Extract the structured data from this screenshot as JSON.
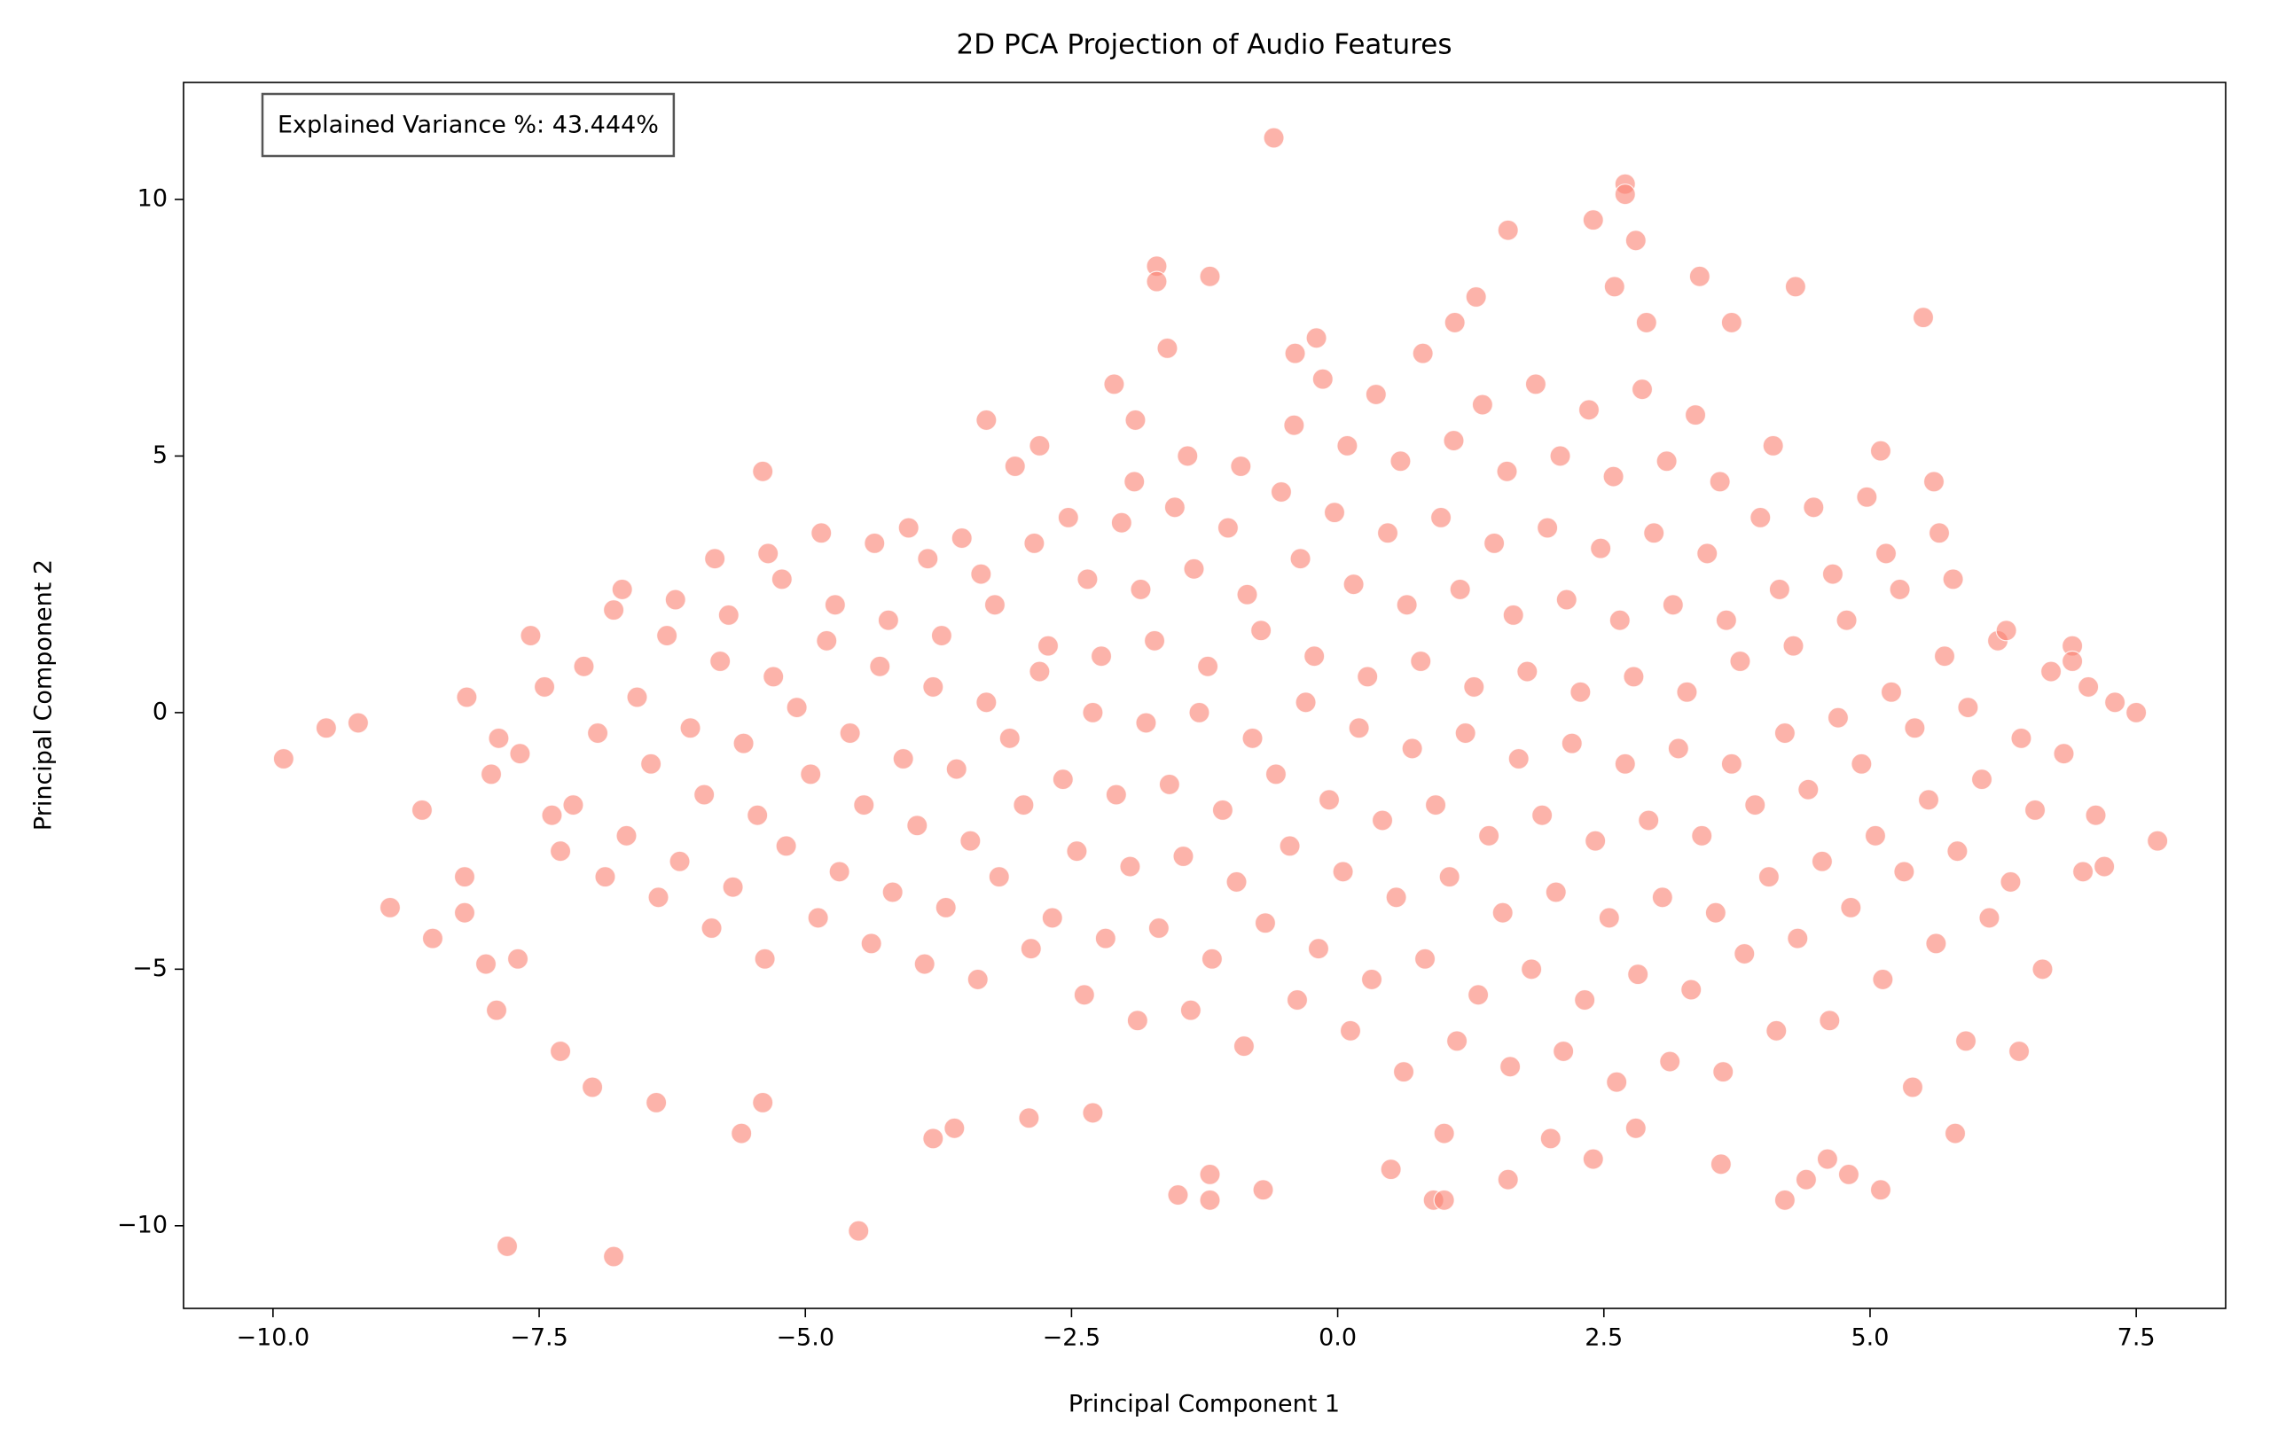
{
  "chart_data": {
    "type": "scatter",
    "title": "2D PCA Projection of Audio Features",
    "x_label": "Principal Component 1",
    "y_label": "Principal Component 2",
    "annotation": "Explained Variance %: 43.444%",
    "color": "#fa8072",
    "xlim": [
      -10.84,
      8.34
    ],
    "ylim": [
      -11.61,
      12.28
    ],
    "xticks": [
      {
        "value": -10,
        "label": "−10.0"
      },
      {
        "value": -7.5,
        "label": "−7.5"
      },
      {
        "value": -5,
        "label": "−5.0"
      },
      {
        "value": -2.5,
        "label": "−2.5"
      },
      {
        "value": 0,
        "label": "0.0"
      },
      {
        "value": 2.5,
        "label": "2.5"
      },
      {
        "value": 5,
        "label": "5.0"
      },
      {
        "value": 7.5,
        "label": "7.5"
      }
    ],
    "yticks": [
      {
        "value": -10,
        "label": "−10"
      },
      {
        "value": -5,
        "label": "−5"
      },
      0,
      5,
      10
    ],
    "x": [
      -9.9,
      -9.5,
      -9.2,
      -8.9,
      -8.6,
      -8.5,
      -8.2,
      -8.2,
      -8.0,
      -7.9,
      -7.8,
      -7.7,
      -6.8,
      -4.5,
      -7.3,
      -7.0,
      -6.4,
      -5.6,
      -5.4,
      -3.8,
      -3.6,
      -2.3,
      -2.9,
      -1.5,
      -1.2,
      -1.2,
      -0.7,
      0.5,
      0.9,
      1.0,
      1.6,
      1.0,
      2.0,
      2.4,
      2.8,
      3.6,
      4.2,
      4.4,
      4.6,
      4.8,
      5.1,
      5.8,
      5.9,
      5.4,
      6.4,
      7.7,
      7.5,
      7.3,
      7.2,
      7.0,
      6.9,
      6.9,
      5.5,
      4.3,
      3.4,
      3.7,
      2.9,
      2.8,
      2.7,
      2.7,
      2.4,
      1.6,
      1.3,
      2.6,
      -0.6,
      -1.7,
      -1.7,
      -1.2,
      -1.6,
      -0.4,
      -0.2,
      1.1,
      0.8,
      -2.1,
      -3.3,
      -5.4,
      -1.9,
      -2.8,
      5.1,
      5.6,
      -7.88,
      -8.18,
      -7.95,
      -7.38,
      -7.68,
      -7.45,
      -7.58,
      -7.3,
      -6.88,
      -7.18,
      -6.95,
      -7.08,
      -6.8,
      -6.38,
      -6.68,
      -6.45,
      -6.58,
      -6.3,
      -6.72,
      -5.88,
      -6.18,
      -5.95,
      -6.08,
      -5.8,
      -6.22,
      -5.85,
      -5.38,
      -5.68,
      -5.45,
      -5.58,
      -5.3,
      -5.72,
      -5.35,
      -4.88,
      -5.18,
      -4.95,
      -5.08,
      -4.8,
      -5.22,
      -4.85,
      -4.38,
      -4.68,
      -4.45,
      -4.58,
      -4.3,
      -4.72,
      -4.35,
      -3.88,
      -4.18,
      -3.95,
      -4.08,
      -3.8,
      -4.22,
      -3.85,
      -4.03,
      -3.38,
      -3.68,
      -3.45,
      -3.58,
      -3.3,
      -3.72,
      -3.35,
      -3.53,
      -2.88,
      -3.18,
      -2.95,
      -3.08,
      -2.8,
      -3.22,
      -2.85,
      -3.03,
      -2.38,
      -2.68,
      -2.45,
      -2.58,
      -2.3,
      -2.72,
      -2.35,
      -2.53,
      -1.88,
      -2.18,
      -1.95,
      -2.08,
      -1.8,
      -2.22,
      -1.85,
      -2.03,
      -1.91,
      -1.38,
      -1.68,
      -1.45,
      -1.58,
      -1.3,
      -1.72,
      -1.35,
      -1.53,
      -1.41,
      -0.88,
      -1.18,
      -0.95,
      -1.08,
      -0.8,
      -1.22,
      -0.85,
      -1.03,
      -0.91,
      -0.38,
      -0.68,
      -0.45,
      -0.58,
      -0.3,
      -0.72,
      -0.35,
      -0.53,
      -0.41,
      0.12,
      -0.18,
      0.05,
      -0.08,
      0.2,
      -0.22,
      0.15,
      -0.03,
      0.09,
      -0.14,
      0.62,
      0.32,
      0.55,
      0.42,
      0.7,
      0.28,
      0.65,
      0.47,
      0.59,
      0.36,
      1.12,
      0.82,
      1.05,
      0.92,
      1.2,
      0.78,
      1.15,
      0.97,
      1.09,
      1.62,
      1.32,
      1.55,
      1.42,
      1.7,
      1.28,
      1.65,
      1.47,
      1.59,
      1.36,
      2.12,
      1.82,
      2.05,
      1.92,
      2.2,
      1.78,
      2.15,
      1.97,
      2.09,
      1.86,
      2.62,
      2.32,
      2.55,
      2.42,
      2.7,
      2.28,
      2.65,
      2.47,
      2.59,
      2.36,
      3.12,
      2.82,
      3.05,
      2.92,
      3.2,
      2.78,
      3.15,
      2.97,
      3.09,
      2.86,
      3.62,
      3.32,
      3.55,
      3.42,
      3.7,
      3.28,
      3.65,
      3.47,
      3.59,
      3.36,
      4.12,
      3.82,
      4.05,
      3.92,
      4.2,
      3.78,
      4.15,
      3.97,
      4.09,
      4.62,
      4.32,
      4.55,
      4.42,
      4.7,
      4.28,
      4.65,
      4.47,
      5.12,
      4.82,
      5.05,
      4.92,
      5.2,
      4.78,
      5.15,
      4.97,
      5.62,
      5.32,
      5.55,
      5.42,
      5.7,
      5.28,
      5.65,
      6.12,
      5.82,
      6.05,
      5.92,
      6.2,
      5.78,
      6.62,
      6.32,
      6.55,
      6.42,
      6.7,
      6.28,
      7.12,
      6.82,
      7.05
    ],
    "values": [
      -0.9,
      -0.3,
      -0.2,
      -3.8,
      -1.9,
      -4.4,
      -3.9,
      -3.2,
      -4.9,
      -5.8,
      -10.4,
      -4.8,
      -10.6,
      -10.1,
      -6.6,
      -7.3,
      -7.6,
      -8.2,
      -7.6,
      -8.3,
      -8.1,
      -7.8,
      -7.9,
      -9.4,
      -9.0,
      -9.5,
      -9.3,
      -8.9,
      -9.5,
      -9.5,
      -9.1,
      -8.2,
      -8.3,
      -8.7,
      -8.1,
      -8.8,
      -9.5,
      -9.1,
      -8.7,
      -9.0,
      -9.3,
      -8.2,
      -6.4,
      -7.3,
      -6.6,
      -2.5,
      0.0,
      0.2,
      -3.0,
      -3.1,
      1.3,
      1.0,
      7.7,
      8.3,
      8.5,
      7.6,
      7.6,
      9.2,
      10.3,
      10.1,
      9.6,
      9.4,
      8.1,
      8.3,
      11.2,
      8.7,
      8.4,
      8.5,
      7.1,
      7.0,
      7.3,
      7.6,
      7.0,
      6.4,
      5.7,
      4.7,
      5.7,
      5.2,
      5.1,
      4.5,
      -0.5,
      0.3,
      -1.2,
      -2.0,
      -0.8,
      0.5,
      1.5,
      -2.7,
      -3.2,
      -1.8,
      -0.4,
      0.9,
      2.0,
      -3.6,
      -2.4,
      -1.0,
      0.3,
      1.5,
      2.4,
      -4.2,
      -2.9,
      -1.6,
      -0.3,
      1.0,
      2.2,
      3.0,
      -4.8,
      -3.4,
      -2.0,
      -0.6,
      0.7,
      1.9,
      3.1,
      -4.0,
      -2.6,
      -1.2,
      0.1,
      1.4,
      2.6,
      3.5,
      -4.5,
      -3.1,
      -1.8,
      -0.4,
      0.9,
      2.1,
      3.3,
      -4.9,
      -3.5,
      -2.2,
      -0.9,
      0.5,
      1.8,
      3.0,
      3.6,
      -5.2,
      -3.8,
      -2.5,
      -1.1,
      0.2,
      1.5,
      2.7,
      3.4,
      -4.6,
      -3.2,
      -1.8,
      -0.5,
      0.8,
      2.1,
      3.3,
      4.8,
      -5.5,
      -4.0,
      -2.7,
      -1.3,
      0.0,
      1.3,
      2.6,
      3.8,
      -6.0,
      -4.4,
      -3.0,
      -1.6,
      -0.2,
      1.1,
      2.4,
      3.7,
      4.5,
      -5.8,
      -4.2,
      -2.8,
      -1.4,
      0.0,
      1.4,
      2.8,
      4.0,
      5.0,
      -6.5,
      -4.8,
      -3.3,
      -1.9,
      -0.5,
      0.9,
      2.3,
      3.6,
      4.8,
      -5.6,
      -4.1,
      -2.6,
      -1.2,
      0.2,
      1.6,
      3.0,
      4.3,
      5.6,
      -6.2,
      -4.6,
      -3.1,
      -1.7,
      -0.3,
      1.1,
      2.5,
      3.9,
      5.2,
      6.5,
      -7.0,
      -5.2,
      -3.6,
      -2.1,
      -0.7,
      0.7,
      2.1,
      3.5,
      4.9,
      6.2,
      -6.4,
      -4.8,
      -3.2,
      -1.8,
      -0.4,
      1.0,
      2.4,
      3.8,
      5.3,
      -6.9,
      -5.5,
      -3.9,
      -2.4,
      -0.9,
      0.5,
      1.9,
      3.3,
      4.7,
      6.0,
      -6.6,
      -5.0,
      -3.5,
      -2.0,
      -0.6,
      0.8,
      2.2,
      3.6,
      5.0,
      6.4,
      -7.2,
      -5.6,
      -4.0,
      -2.5,
      -1.0,
      0.4,
      1.8,
      3.2,
      4.6,
      5.9,
      -6.8,
      -5.1,
      -3.6,
      -2.1,
      -0.7,
      0.7,
      2.1,
      3.5,
      4.9,
      6.3,
      -7.0,
      -5.4,
      -3.9,
      -2.4,
      -1.0,
      0.4,
      1.8,
      3.1,
      4.5,
      5.8,
      -6.2,
      -4.7,
      -3.2,
      -1.8,
      -0.4,
      1.0,
      2.4,
      3.8,
      5.2,
      -6.0,
      -4.4,
      -2.9,
      -1.5,
      -0.1,
      1.3,
      2.7,
      4.0,
      -5.2,
      -3.8,
      -2.4,
      -1.0,
      0.4,
      1.8,
      3.1,
      4.2,
      -4.5,
      -3.1,
      -1.7,
      -0.3,
      1.1,
      2.4,
      3.5,
      -4.0,
      -2.7,
      -1.3,
      0.1,
      1.4,
      2.6,
      -5.0,
      -3.3,
      -1.9,
      -0.5,
      0.8,
      1.6,
      -2.0,
      -0.8,
      0.5
    ]
  }
}
